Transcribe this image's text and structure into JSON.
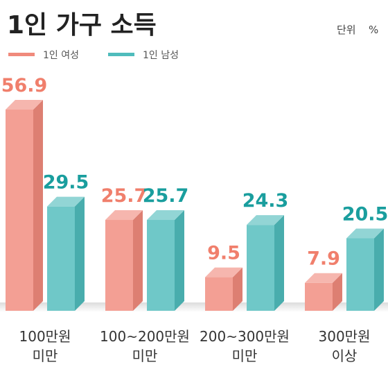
{
  "chart_data": {
    "type": "bar",
    "title": "1인 가구 소득",
    "unit_label": "단위",
    "unit_value": "%",
    "categories": [
      [
        "100만원",
        "미만"
      ],
      [
        "100~200만원",
        "미만"
      ],
      [
        "200~300만원",
        "미만"
      ],
      [
        "300만원",
        "이상"
      ]
    ],
    "series": [
      {
        "name": "1인 여성",
        "values": [
          56.9,
          25.7,
          9.5,
          7.9
        ],
        "color": "#f08a7c",
        "label_color": "#f07f6c"
      },
      {
        "name": "1인 남성",
        "values": [
          29.5,
          25.7,
          24.3,
          20.5
        ],
        "color": "#4fbcbc",
        "label_color": "#1a9e9e"
      }
    ],
    "value_labels": [
      [
        "56.9",
        "25.7",
        "9.5",
        "7.9"
      ],
      [
        "29.5",
        "25.7",
        "24.3",
        "20.5"
      ]
    ],
    "ylim": [
      0,
      60
    ],
    "grid": false,
    "legend_position": "top-left"
  }
}
